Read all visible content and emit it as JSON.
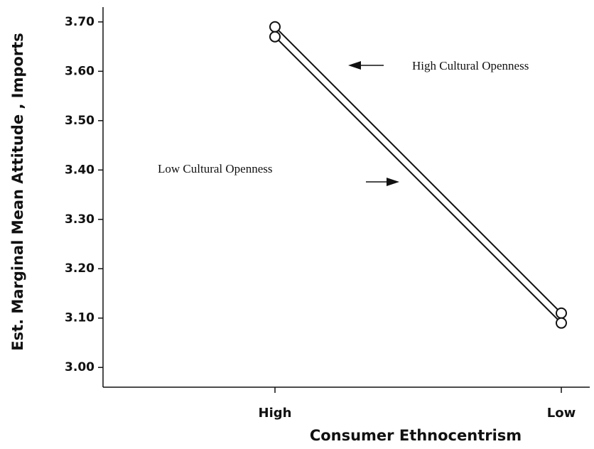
{
  "chart_data": {
    "type": "line",
    "x_label": "Consumer Ethnocentrism",
    "y_label": "Est. Marginal Mean Attitude , Imports",
    "categories": [
      "High",
      "Low"
    ],
    "series": [
      {
        "name": "High Cultural Openness",
        "color": "#111111",
        "values": [
          3.69,
          3.11
        ]
      },
      {
        "name": "Low Cultural Openness",
        "color": "#111111",
        "values": [
          3.67,
          3.09
        ]
      }
    ],
    "ylim": [
      2.96,
      3.73
    ],
    "yticks": [
      {
        "value": 3.0,
        "label": "3.00"
      },
      {
        "value": 3.1,
        "label": "3.10"
      },
      {
        "value": 3.2,
        "label": "3.20"
      },
      {
        "value": 3.3,
        "label": "3.30"
      },
      {
        "value": 3.4,
        "label": "3.40"
      },
      {
        "value": 3.5,
        "label": "3.50"
      },
      {
        "value": 3.6,
        "label": "3.60"
      },
      {
        "value": 3.7,
        "label": "3.70"
      }
    ]
  }
}
